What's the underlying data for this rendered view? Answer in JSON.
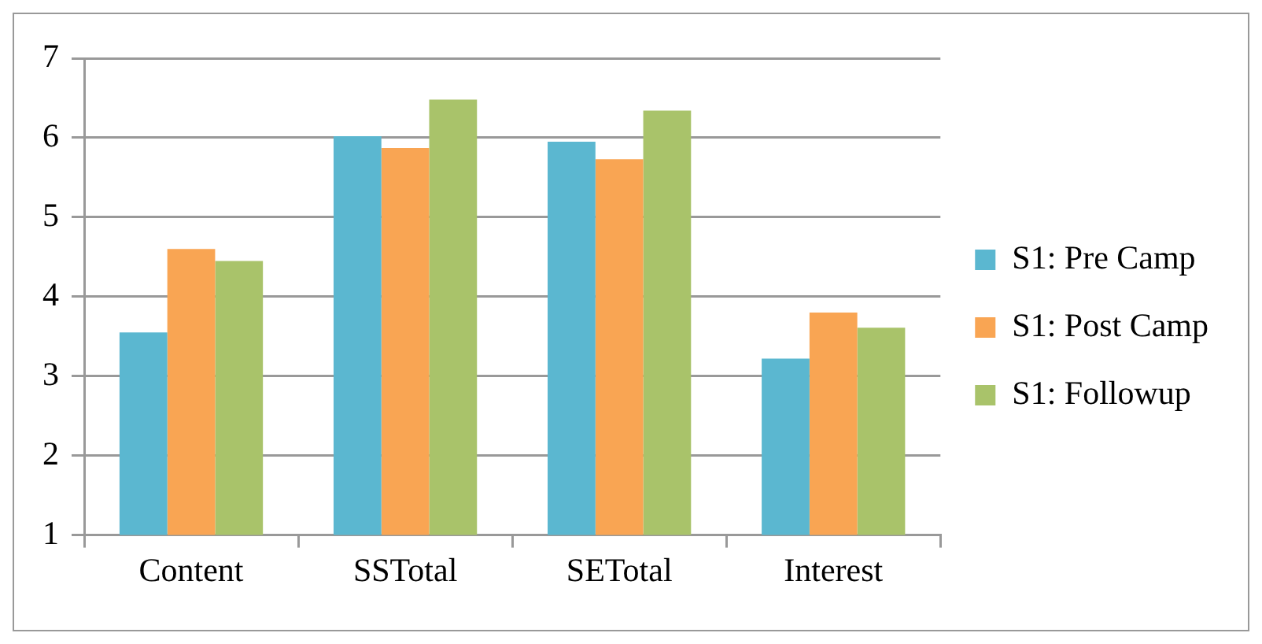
{
  "chart_data": {
    "type": "bar",
    "categories": [
      "Content",
      "SSTotal",
      "SETotal",
      "Interest"
    ],
    "series": [
      {
        "name": "S1: Pre Camp",
        "color": "#5bb7d0",
        "values": [
          3.55,
          6.02,
          5.95,
          3.22
        ]
      },
      {
        "name": "S1: Post Camp",
        "color": "#f9a553",
        "values": [
          4.6,
          5.87,
          5.73,
          3.8
        ]
      },
      {
        "name": "S1: Followup",
        "color": "#a9c36a",
        "values": [
          4.45,
          6.48,
          6.34,
          3.61
        ]
      }
    ],
    "ylim": [
      1,
      7
    ],
    "yticks": [
      1,
      2,
      3,
      4,
      5,
      6,
      7
    ],
    "grid": "y",
    "legend": "right"
  }
}
